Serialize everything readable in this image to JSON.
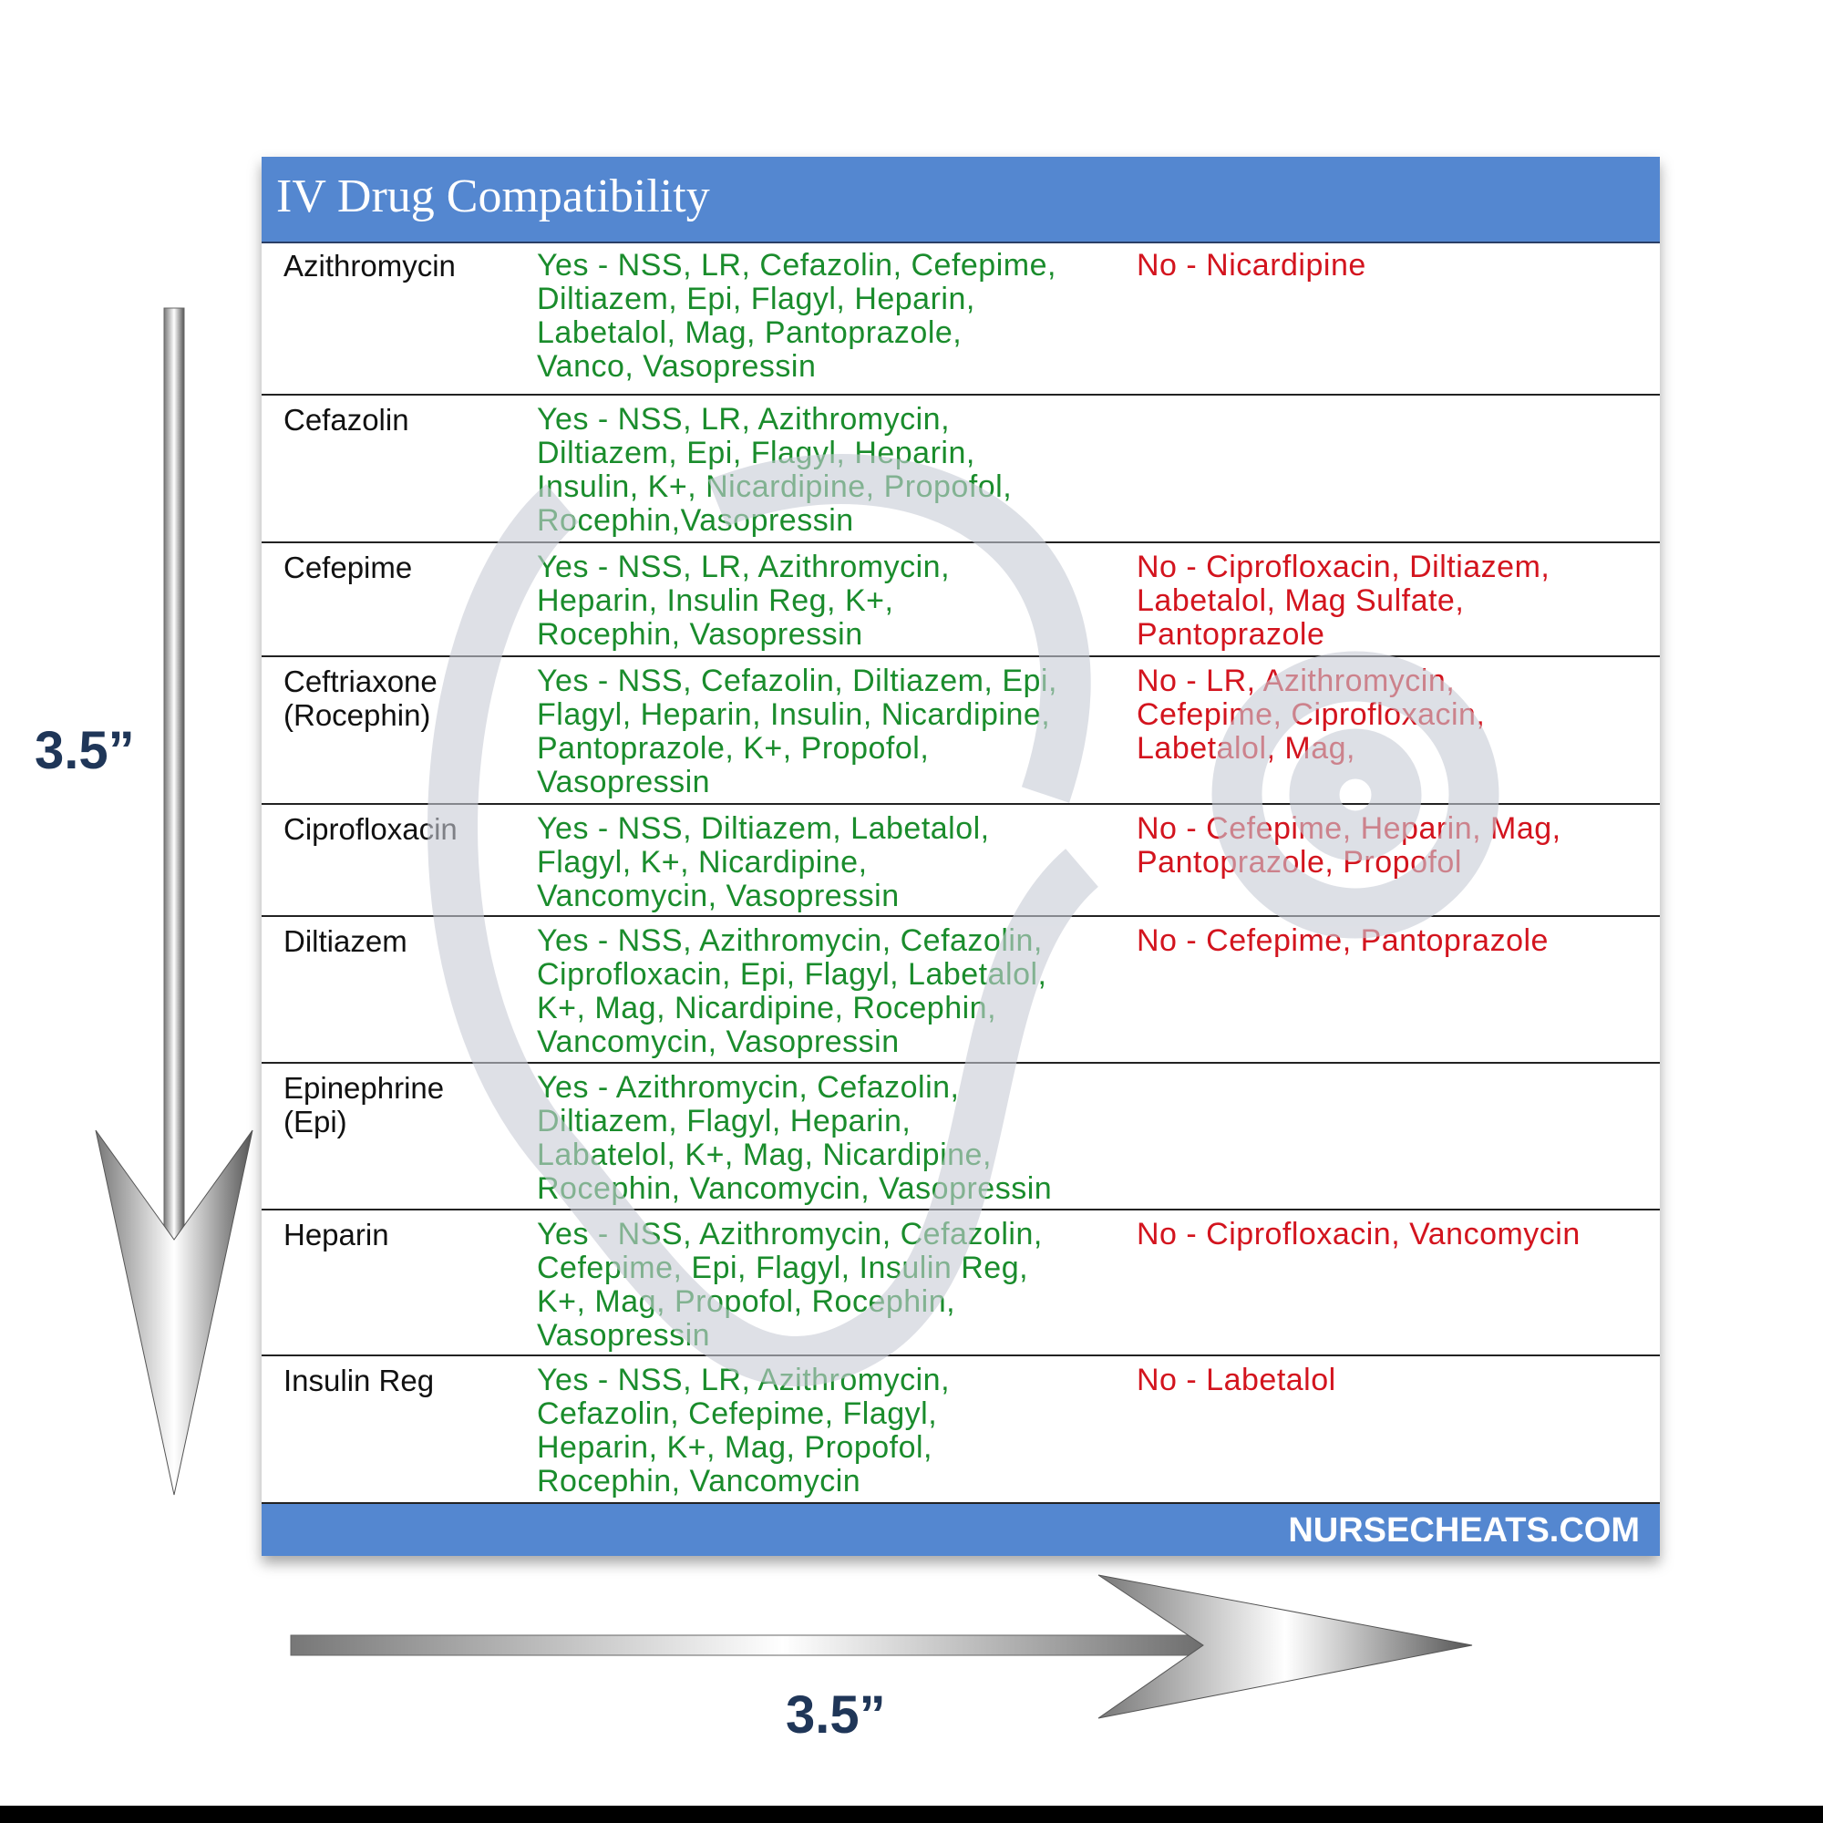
{
  "header": {
    "title": "IV Drug Compatibility"
  },
  "table": {
    "rows": [
      {
        "drug": [
          "Azithromycin"
        ],
        "yes": [
          "Yes - NSS, LR, Cefazolin, Cefepime,",
          "Diltiazem, Epi, Flagyl, Heparin,",
          "Labetalol, Mag, Pantoprazole,",
          "Vanco, Vasopressin"
        ],
        "no": [
          "No - Nicardipine"
        ]
      },
      {
        "drug": [
          "Cefazolin"
        ],
        "yes": [
          "Yes - NSS, LR, Azithromycin,",
          "Diltiazem, Epi, Flagyl, Heparin,",
          "Insulin, K+, Nicardipine, Propofol,",
          "Rocephin,Vasopressin"
        ]
      },
      {
        "drug": [
          "Cefepime"
        ],
        "yes": [
          "Yes - NSS, LR, Azithromycin,",
          "Heparin, Insulin Reg, K+,",
          "Rocephin, Vasopressin"
        ],
        "no": [
          "No - Ciprofloxacin, Diltiazem,",
          "Labetalol, Mag Sulfate,",
          "Pantoprazole"
        ]
      },
      {
        "drug": [
          "Ceftriaxone",
          "(Rocephin)"
        ],
        "yes": [
          "Yes - NSS, Cefazolin, Diltiazem, Epi,",
          "Flagyl, Heparin, Insulin, Nicardipine,",
          "Pantoprazole, K+, Propofol,",
          "Vasopressin"
        ],
        "no": [
          "No - LR, Azithromycin,",
          "Cefepime, Ciprofloxacin,",
          "Labetalol, Mag,"
        ]
      },
      {
        "drug": [
          "Ciprofloxacin"
        ],
        "yes": [
          "Yes - NSS, Diltiazem, Labetalol,",
          "Flagyl, K+, Nicardipine,",
          "Vancomycin, Vasopressin"
        ],
        "no": [
          "No - Cefepime, Heparin, Mag,",
          "Pantoprazole, Propofol"
        ]
      },
      {
        "drug": [
          "Diltiazem"
        ],
        "yes": [
          "Yes - NSS, Azithromycin, Cefazolin,",
          "Ciprofloxacin, Epi, Flagyl, Labetalol,",
          "K+, Mag, Nicardipine, Rocephin,",
          "Vancomycin, Vasopressin"
        ],
        "no": [
          "No - Cefepime, Pantoprazole"
        ]
      },
      {
        "drug": [
          "Epinephrine",
          "(Epi)"
        ],
        "yes": [
          "Yes - Azithromycin, Cefazolin,",
          "Diltiazem, Flagyl, Heparin,",
          "Labatelol, K+, Mag, Nicardipine,",
          "Rocephin, Vancomycin, Vasopressin"
        ]
      },
      {
        "drug": [
          "Heparin"
        ],
        "yes": [
          "Yes - NSS, Azithromycin, Cefazolin,",
          "Cefepime, Epi, Flagyl, Insulin Reg,",
          "K+, Mag, Propofol, Rocephin,",
          "Vasopressin"
        ],
        "no": [
          "No - Ciprofloxacin, Vancomycin"
        ]
      },
      {
        "drug": [
          "Insulin Reg"
        ],
        "yes": [
          "Yes - NSS, LR, Azithromycin,",
          "Cefazolin, Cefepime, Flagyl,",
          "Heparin, K+, Mag, Propofol,",
          "Rocephin, Vancomycin"
        ],
        "no": [
          "No - Labetalol"
        ]
      }
    ]
  },
  "footer": {
    "site": "NURSECHEATS.COM"
  },
  "dimensions": {
    "height": "3.5”",
    "width": "3.5”"
  }
}
